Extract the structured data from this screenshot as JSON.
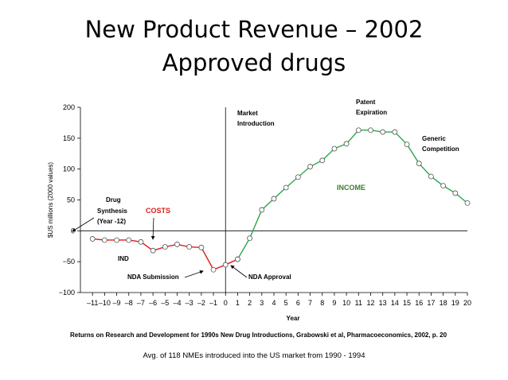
{
  "title_line1": "New Product Revenue – 2002",
  "title_line2": "Approved drugs",
  "citation": "Returns on Research and Development for 1990s New Drug Introductions, Grabowski et al, Pharmacoeconomics,  2002, p. 20",
  "footnote": "Avg. of 118 NMEs introduced into the US market from 1990 - 1994",
  "colors": {
    "costs": "#e01b1b",
    "income": "#2aa84a",
    "axis": "#000000",
    "marker_fill": "#ffffff"
  },
  "chart_data": {
    "type": "line",
    "xlabel": "Year",
    "ylabel": "$US millions (2000 values)",
    "xlim": [
      -12,
      20
    ],
    "ylim": [
      -100,
      200
    ],
    "x_ticks": [
      -11,
      -10,
      -9,
      -8,
      -7,
      -6,
      -5,
      -4,
      -3,
      -2,
      -1,
      0,
      1,
      2,
      3,
      4,
      5,
      6,
      7,
      8,
      9,
      10,
      11,
      12,
      13,
      14,
      15,
      16,
      17,
      18,
      19,
      20
    ],
    "x_tick_labels": [
      "–11",
      "–10",
      "–9",
      "–8",
      "–7",
      "–6",
      "–5",
      "–4",
      "–3",
      "–2",
      "–1",
      "0",
      "1",
      "2",
      "3",
      "4",
      "5",
      "6",
      "7",
      "8",
      "9",
      "10",
      "11",
      "12",
      "13",
      "14",
      "15",
      "16",
      "17",
      "18",
      "19",
      "20"
    ],
    "y_ticks": [
      -100,
      -50,
      0,
      50,
      100,
      150,
      200
    ],
    "y_tick_labels": [
      "−100",
      "−50",
      "0",
      "50",
      "100",
      "150",
      "200"
    ],
    "grid": false,
    "series": [
      {
        "name": "COSTS",
        "color": "#e01b1b",
        "x": [
          -11,
          -10,
          -9,
          -8,
          -7,
          -6,
          -5,
          -4,
          -3,
          -2,
          -1,
          0,
          1
        ],
        "y": [
          -13,
          -15,
          -15,
          -15,
          -18,
          -32,
          -26,
          -22,
          -26,
          -27,
          -63,
          -55,
          -46
        ]
      },
      {
        "name": "INCOME",
        "color": "#2aa84a",
        "x": [
          1,
          2,
          3,
          4,
          5,
          6,
          7,
          8,
          9,
          10,
          11,
          12,
          13,
          14,
          15,
          16,
          17,
          18,
          19,
          20
        ],
        "y": [
          -46,
          -12,
          34,
          52,
          70,
          87,
          104,
          114,
          133,
          141,
          163,
          163,
          160,
          160,
          140,
          109,
          88,
          73,
          61,
          45
        ]
      }
    ],
    "annotations": [
      {
        "id": "drug1",
        "text": "Drug"
      },
      {
        "id": "drug2",
        "text": "Synthesis"
      },
      {
        "id": "drug3",
        "text": "(Year -12)"
      },
      {
        "id": "costs",
        "text": "COSTS"
      },
      {
        "id": "ind",
        "text": "IND"
      },
      {
        "id": "nda_sub",
        "text": "NDA Submission"
      },
      {
        "id": "nda_app",
        "text": "NDA Approval"
      },
      {
        "id": "mkt1",
        "text": "Market"
      },
      {
        "id": "mkt2",
        "text": "Introduction"
      },
      {
        "id": "pat1",
        "text": "Patent"
      },
      {
        "id": "pat2",
        "text": "Expiration"
      },
      {
        "id": "gen1",
        "text": "Generic"
      },
      {
        "id": "gen2",
        "text": "Competition"
      },
      {
        "id": "income",
        "text": "INCOME"
      }
    ]
  }
}
